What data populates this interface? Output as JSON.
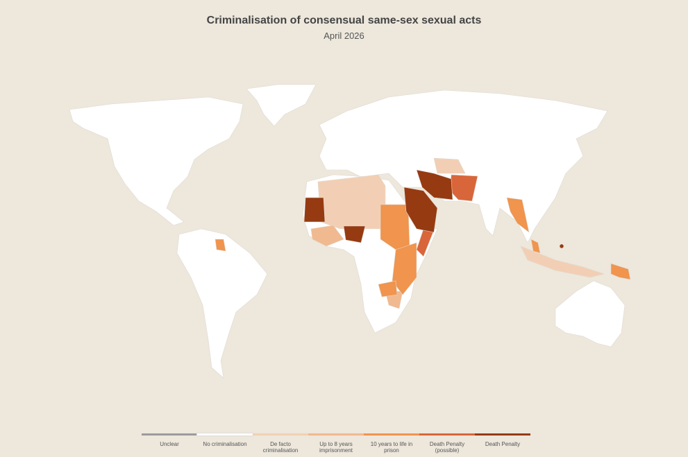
{
  "header": {
    "title": "Criminalisation of consensual same-sex sexual acts",
    "subtitle": "April 2026"
  },
  "legend": [
    {
      "label": "Unclear",
      "color": "#9b9b9b"
    },
    {
      "label": "No criminalisation",
      "color": "#ffffff"
    },
    {
      "label": "De facto criminalisation",
      "color": "#f2cfb4"
    },
    {
      "label": "Up to 8 years imprisonment",
      "color": "#f1b98f"
    },
    {
      "label": "10 years to life in prison",
      "color": "#f0944e"
    },
    {
      "label": "Death Penalty (possible)",
      "color": "#d8663a"
    },
    {
      "label": "Death Penalty",
      "color": "#963a12"
    }
  ]
}
